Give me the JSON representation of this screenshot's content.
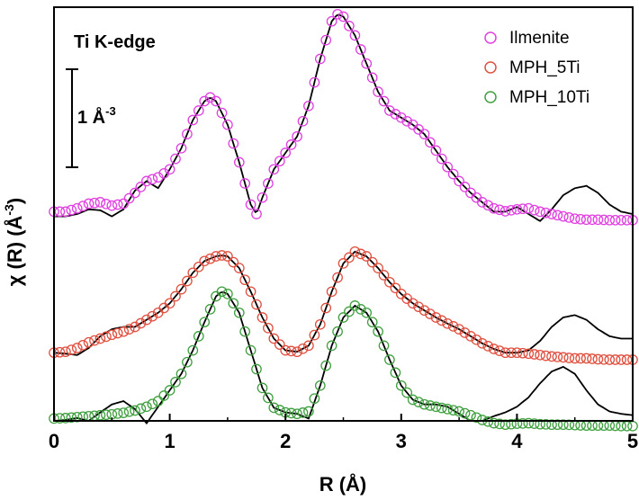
{
  "chart_data": {
    "type": "line",
    "title": "",
    "xlabel": "R (Å)",
    "ylabel": "χ (R) (Å⁻³)",
    "ylabel_parts": {
      "main": "χ (R) (Å",
      "sup": "-3",
      "close": ")"
    },
    "xlim": [
      0,
      5
    ],
    "ylim": [
      0,
      8.8
    ],
    "x_ticks": [
      "0",
      "1",
      "2",
      "3",
      "4",
      "5"
    ],
    "grid": false,
    "legend": {
      "placement": "top-right",
      "entries": [
        "Ilmenite",
        "MPH_5Ti",
        "MPH_10Ti"
      ]
    },
    "annotations": {
      "edge_label": "Ti K-edge",
      "scale_bar": {
        "text_main": "1 Å",
        "text_sup": "-3",
        "length": 2.0
      }
    },
    "fit_line_color": "#000000",
    "series": [
      {
        "name": "Ilmenite",
        "color": "#e040e0",
        "offset": 4.4,
        "x": [
          0.0,
          0.1,
          0.2,
          0.3,
          0.4,
          0.5,
          0.6,
          0.7,
          0.8,
          0.9,
          1.0,
          1.1,
          1.2,
          1.3,
          1.35,
          1.4,
          1.5,
          1.6,
          1.7,
          1.75,
          1.8,
          1.9,
          2.0,
          2.1,
          2.2,
          2.3,
          2.4,
          2.45,
          2.5,
          2.6,
          2.7,
          2.8,
          2.9,
          3.0,
          3.1,
          3.2,
          3.3,
          3.4,
          3.5,
          3.6,
          3.7,
          3.8,
          3.9,
          4.0,
          4.1,
          4.2,
          4.3,
          4.4,
          4.5,
          4.6,
          4.7,
          4.8,
          4.9,
          5.0
        ],
        "y": [
          0.05,
          0.05,
          0.12,
          0.22,
          0.25,
          0.18,
          0.22,
          0.45,
          0.7,
          0.78,
          0.95,
          1.4,
          2.0,
          2.4,
          2.48,
          2.4,
          1.9,
          1.1,
          0.2,
          0.0,
          0.35,
          0.95,
          1.3,
          1.65,
          2.3,
          3.3,
          4.1,
          4.25,
          4.2,
          3.8,
          3.2,
          2.6,
          2.2,
          2.05,
          1.9,
          1.7,
          1.35,
          1.0,
          0.7,
          0.45,
          0.25,
          0.12,
          0.06,
          0.1,
          0.12,
          0.05,
          0.0,
          -0.05,
          -0.1,
          -0.12,
          -0.12,
          -0.13,
          -0.13,
          -0.13
        ],
        "fit": [
          -0.05,
          -0.05,
          0.0,
          0.1,
          0.08,
          -0.05,
          0.1,
          0.5,
          0.7,
          0.55,
          0.95,
          1.4,
          2.0,
          2.4,
          2.48,
          2.4,
          1.9,
          1.1,
          0.2,
          0.0,
          0.35,
          0.95,
          1.3,
          1.65,
          2.3,
          3.3,
          4.1,
          4.25,
          4.2,
          3.8,
          3.2,
          2.6,
          2.2,
          2.05,
          1.9,
          1.7,
          1.35,
          1.0,
          0.7,
          0.45,
          0.25,
          0.05,
          0.05,
          0.15,
          0.0,
          -0.15,
          0.1,
          0.4,
          0.55,
          0.6,
          0.45,
          0.2,
          0.05,
          0.0
        ]
      },
      {
        "name": "MPH_5Ti",
        "color": "#e05040",
        "offset": 1.45,
        "x": [
          0.0,
          0.1,
          0.2,
          0.3,
          0.4,
          0.5,
          0.6,
          0.7,
          0.8,
          0.9,
          1.0,
          1.1,
          1.2,
          1.3,
          1.4,
          1.45,
          1.5,
          1.6,
          1.7,
          1.8,
          1.9,
          2.0,
          2.1,
          2.2,
          2.3,
          2.4,
          2.5,
          2.6,
          2.7,
          2.8,
          2.9,
          3.0,
          3.1,
          3.2,
          3.3,
          3.4,
          3.5,
          3.6,
          3.7,
          3.8,
          3.9,
          4.0,
          4.1,
          4.2,
          4.3,
          4.4,
          4.5,
          4.6,
          4.7,
          4.8,
          4.9,
          5.0
        ],
        "y": [
          0.0,
          0.02,
          0.1,
          0.22,
          0.3,
          0.38,
          0.45,
          0.55,
          0.7,
          0.85,
          1.05,
          1.35,
          1.7,
          1.95,
          2.05,
          2.07,
          2.05,
          1.8,
          1.3,
          0.75,
          0.3,
          0.05,
          0.02,
          0.15,
          0.6,
          1.3,
          1.9,
          2.15,
          2.05,
          1.8,
          1.5,
          1.25,
          1.05,
          0.9,
          0.75,
          0.62,
          0.5,
          0.35,
          0.2,
          0.08,
          0.0,
          0.0,
          -0.02,
          -0.05,
          -0.08,
          -0.1,
          -0.12,
          -0.12,
          -0.14,
          -0.15,
          -0.15,
          -0.15
        ],
        "fit": [
          0.0,
          -0.02,
          -0.05,
          0.1,
          0.35,
          0.5,
          0.55,
          0.55,
          0.7,
          0.85,
          1.05,
          1.35,
          1.7,
          1.95,
          2.05,
          2.07,
          2.05,
          1.8,
          1.3,
          0.75,
          0.3,
          0.05,
          0.02,
          0.15,
          0.6,
          1.3,
          1.9,
          2.15,
          2.05,
          1.8,
          1.5,
          1.25,
          1.05,
          0.9,
          0.75,
          0.62,
          0.5,
          0.35,
          0.2,
          0.08,
          0.0,
          0.0,
          0.05,
          0.25,
          0.55,
          0.75,
          0.8,
          0.7,
          0.5,
          0.35,
          0.3,
          0.3
        ]
      },
      {
        "name": "MPH_10Ti",
        "color": "#40a040",
        "offset": 0.0,
        "x": [
          0.0,
          0.1,
          0.2,
          0.3,
          0.4,
          0.5,
          0.6,
          0.7,
          0.8,
          0.9,
          1.0,
          1.1,
          1.2,
          1.3,
          1.4,
          1.45,
          1.5,
          1.6,
          1.7,
          1.8,
          1.9,
          2.0,
          2.1,
          2.2,
          2.3,
          2.4,
          2.5,
          2.6,
          2.7,
          2.8,
          2.9,
          3.0,
          3.1,
          3.2,
          3.3,
          3.4,
          3.5,
          3.6,
          3.7,
          3.8,
          3.9,
          4.0,
          4.1,
          4.2,
          4.3,
          4.4,
          4.5,
          4.6,
          4.7,
          4.8,
          4.9,
          5.0
        ],
        "y": [
          0.05,
          0.06,
          0.08,
          0.1,
          0.12,
          0.14,
          0.17,
          0.22,
          0.3,
          0.42,
          0.65,
          1.0,
          1.5,
          2.1,
          2.65,
          2.75,
          2.7,
          2.3,
          1.5,
          0.7,
          0.28,
          0.18,
          0.15,
          0.2,
          0.75,
          1.6,
          2.2,
          2.45,
          2.3,
          1.9,
          1.3,
          0.75,
          0.45,
          0.35,
          0.3,
          0.25,
          0.2,
          0.12,
          0.02,
          -0.05,
          -0.08,
          -0.06,
          -0.05,
          -0.07,
          -0.08,
          -0.08,
          -0.09,
          -0.1,
          -0.1,
          -0.1,
          -0.11,
          -0.11
        ],
        "fit": [
          0.0,
          0.02,
          0.06,
          0.0,
          0.18,
          0.35,
          0.42,
          0.25,
          -0.05,
          0.3,
          0.65,
          1.0,
          1.5,
          2.1,
          2.65,
          2.75,
          2.7,
          2.3,
          1.5,
          0.7,
          0.28,
          0.18,
          0.15,
          0.05,
          0.75,
          1.6,
          2.2,
          2.45,
          2.3,
          1.9,
          1.3,
          0.75,
          0.45,
          0.35,
          0.35,
          0.3,
          0.15,
          0.0,
          0.0,
          0.1,
          0.18,
          0.3,
          0.5,
          0.8,
          1.05,
          1.15,
          1.0,
          0.65,
          0.35,
          0.2,
          0.15,
          0.12
        ]
      }
    ]
  }
}
